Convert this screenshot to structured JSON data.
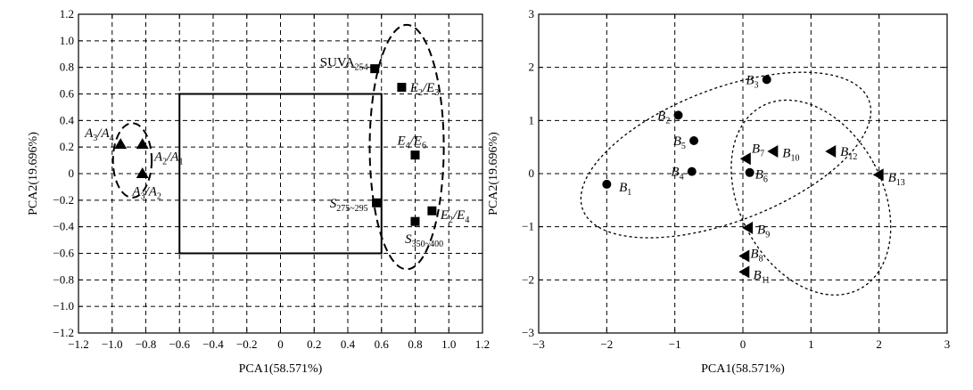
{
  "chart_data": [
    {
      "type": "scatter",
      "xlabel": "PCA1(58.571%)",
      "ylabel": "PCA2(19.696%)",
      "xlim": [
        -1.2,
        1.2
      ],
      "ylim": [
        -1.2,
        1.2
      ],
      "xticks": [
        -1.2,
        -1.0,
        -0.8,
        -0.6,
        -0.4,
        -0.2,
        0,
        0.2,
        0.4,
        0.6,
        0.8,
        1.0,
        1.2
      ],
      "yticks": [
        -1.2,
        -1.0,
        -0.8,
        -0.6,
        -0.4,
        -0.2,
        0,
        0.2,
        0.4,
        0.6,
        0.8,
        1.0,
        1.2
      ],
      "grid": true,
      "points": [
        {
          "base": "A",
          "sub": "3",
          "mid": "/A",
          "sub2": "4",
          "x": -0.95,
          "y": 0.22,
          "marker": "triangle",
          "ldx": -0.04,
          "ldy": 0.09,
          "anchor": "end"
        },
        {
          "base": "A",
          "sub": "2",
          "mid": "/A",
          "sub2": "1",
          "x": -0.82,
          "y": 0.22,
          "marker": "triangle",
          "ldx": 0.07,
          "ldy": -0.09,
          "anchor": "start"
        },
        {
          "base": "A",
          "sub": "3",
          "mid": "/A",
          "sub2": "2",
          "x": -0.82,
          "y": 0.0,
          "marker": "triangle",
          "ldx": -0.06,
          "ldy": -0.13,
          "anchor": "start"
        },
        {
          "base": "SUVA",
          "sub": "254",
          "mid": "",
          "sub2": "",
          "x": 0.56,
          "y": 0.79,
          "marker": "square",
          "ldx": -0.04,
          "ldy": 0.05,
          "anchor": "end"
        },
        {
          "base": "E",
          "sub": "2",
          "mid": "/E",
          "sub2": "3",
          "x": 0.72,
          "y": 0.65,
          "marker": "square",
          "ldx": 0.05,
          "ldy": 0.0,
          "anchor": "start"
        },
        {
          "base": "E",
          "sub": "4",
          "mid": "/E",
          "sub2": "6",
          "x": 0.8,
          "y": 0.14,
          "marker": "square",
          "ldx": -0.02,
          "ldy": 0.11,
          "anchor": "middle"
        },
        {
          "base": "S",
          "sub": "275~295",
          "mid": "",
          "sub2": "",
          "x": 0.57,
          "y": -0.22,
          "marker": "square",
          "ldx": -0.05,
          "ldy": 0.0,
          "anchor": "end"
        },
        {
          "base": "E",
          "sub": "2",
          "mid": "/E",
          "sub2": "4",
          "x": 0.9,
          "y": -0.28,
          "marker": "square",
          "ldx": 0.05,
          "ldy": -0.03,
          "anchor": "start"
        },
        {
          "base": "S",
          "sub": "350~400",
          "mid": "",
          "sub2": "",
          "x": 0.8,
          "y": -0.36,
          "marker": "square",
          "ldx": -0.06,
          "ldy": -0.13,
          "anchor": "start"
        }
      ],
      "rectangle": {
        "x0": -0.6,
        "x1": 0.6,
        "y0": -0.6,
        "y1": 0.6
      },
      "ellipses": [
        {
          "cx": -0.88,
          "cy": 0.1,
          "rx": 0.115,
          "ry": 0.28,
          "rot": 0
        },
        {
          "cx": 0.75,
          "cy": 0.2,
          "rx": 0.22,
          "ry": 0.92,
          "rot": 0
        }
      ]
    },
    {
      "type": "scatter",
      "xlabel": "PCA1(58.571%)",
      "ylabel": "PCA2(19.696%)",
      "xlim": [
        -3,
        3
      ],
      "ylim": [
        -3,
        3
      ],
      "xticks": [
        -3,
        -2,
        -1,
        0,
        1,
        2,
        3
      ],
      "yticks": [
        -3,
        -2,
        -1,
        0,
        1,
        2,
        3
      ],
      "grid": true,
      "points": [
        {
          "base": "B",
          "sub": "1",
          "x": -2.0,
          "y": -0.2,
          "marker": "circle",
          "ldx": 0.18,
          "ldy": -0.05,
          "anchor": "start"
        },
        {
          "base": "B",
          "sub": "2",
          "x": -0.95,
          "y": 1.1,
          "marker": "circle",
          "ldx": -0.12,
          "ldy": 0.0,
          "anchor": "end"
        },
        {
          "base": "B",
          "sub": "3",
          "x": 0.35,
          "y": 1.77,
          "marker": "circle",
          "ldx": -0.12,
          "ldy": 0.0,
          "anchor": "end"
        },
        {
          "base": "B",
          "sub": "5",
          "x": -0.72,
          "y": 0.62,
          "marker": "circle",
          "ldx": -0.12,
          "ldy": 0.0,
          "anchor": "end"
        },
        {
          "base": "B",
          "sub": "4",
          "x": -0.75,
          "y": 0.04,
          "marker": "circle",
          "ldx": -0.12,
          "ldy": 0.0,
          "anchor": "end"
        },
        {
          "base": "B",
          "sub": "6",
          "x": 0.1,
          "y": 0.02,
          "marker": "circle",
          "ldx": 0.08,
          "ldy": -0.03,
          "anchor": "start"
        },
        {
          "base": "B",
          "sub": "7",
          "x": 0.05,
          "y": 0.28,
          "marker": "tri-left",
          "ldx": 0.08,
          "ldy": 0.2,
          "anchor": "start"
        },
        {
          "base": "B",
          "sub": "10",
          "x": 0.45,
          "y": 0.42,
          "marker": "tri-left",
          "ldx": 0.13,
          "ldy": -0.03,
          "anchor": "start"
        },
        {
          "base": "B",
          "sub": "12",
          "x": 1.3,
          "y": 0.42,
          "marker": "tri-left",
          "ldx": 0.13,
          "ldy": 0.0,
          "anchor": "start"
        },
        {
          "base": "B",
          "sub": "13",
          "x": 2.0,
          "y": -0.02,
          "marker": "tri-left",
          "ldx": 0.13,
          "ldy": -0.05,
          "anchor": "start"
        },
        {
          "base": "B",
          "sub": "9",
          "x": 0.08,
          "y": -1.02,
          "marker": "tri-left",
          "ldx": 0.13,
          "ldy": -0.03,
          "anchor": "start"
        },
        {
          "base": "B",
          "sub": "8",
          "x": 0.03,
          "y": -1.55,
          "marker": "tri-left",
          "ldx": 0.08,
          "ldy": 0.05,
          "anchor": "start"
        },
        {
          "base": "B",
          "sub": "11",
          "x": 0.03,
          "y": -1.85,
          "marker": "tri-left",
          "ldx": 0.12,
          "ldy": -0.05,
          "anchor": "start"
        }
      ],
      "ellipses": [
        {
          "cx": -0.25,
          "cy": 0.35,
          "rx": 2.25,
          "ry": 1.25,
          "rot": 21
        },
        {
          "cx": 1.0,
          "cy": -0.45,
          "rx": 1.05,
          "ry": 1.95,
          "rot": 28
        }
      ]
    }
  ]
}
